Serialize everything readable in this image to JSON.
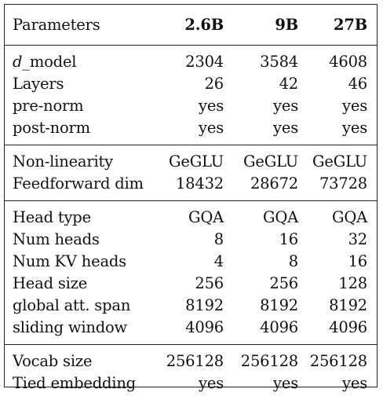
{
  "table": {
    "header": {
      "label": "Parameters",
      "columns": [
        "2.6B",
        "9B",
        "27B"
      ]
    },
    "groups": [
      {
        "rows": [
          {
            "label_italic": "d",
            "label_rest": "_model",
            "values": [
              "2304",
              "3584",
              "4608"
            ]
          },
          {
            "label": "Layers",
            "values": [
              "26",
              "42",
              "46"
            ]
          },
          {
            "label": "pre-norm",
            "values": [
              "yes",
              "yes",
              "yes"
            ]
          },
          {
            "label": "post-norm",
            "values": [
              "yes",
              "yes",
              "yes"
            ]
          }
        ]
      },
      {
        "rows": [
          {
            "label": "Non-linearity",
            "values": [
              "GeGLU",
              "GeGLU",
              "GeGLU"
            ]
          },
          {
            "label": "Feedforward dim",
            "values": [
              "18432",
              "28672",
              "73728"
            ]
          }
        ]
      },
      {
        "rows": [
          {
            "label": "Head type",
            "values": [
              "GQA",
              "GQA",
              "GQA"
            ]
          },
          {
            "label": "Num heads",
            "values": [
              "8",
              "16",
              "32"
            ]
          },
          {
            "label": "Num KV heads",
            "values": [
              "4",
              "8",
              "16"
            ]
          },
          {
            "label": "Head size",
            "values": [
              "256",
              "256",
              "128"
            ]
          },
          {
            "label": "global att. span",
            "values": [
              "8192",
              "8192",
              "8192"
            ]
          },
          {
            "label": "sliding window",
            "values": [
              "4096",
              "4096",
              "4096"
            ]
          }
        ]
      },
      {
        "rows": [
          {
            "label": "Vocab size",
            "values": [
              "256128",
              "256128",
              "256128"
            ]
          },
          {
            "label": "Tied embedding",
            "values": [
              "yes",
              "yes",
              "yes"
            ]
          }
        ]
      }
    ]
  }
}
